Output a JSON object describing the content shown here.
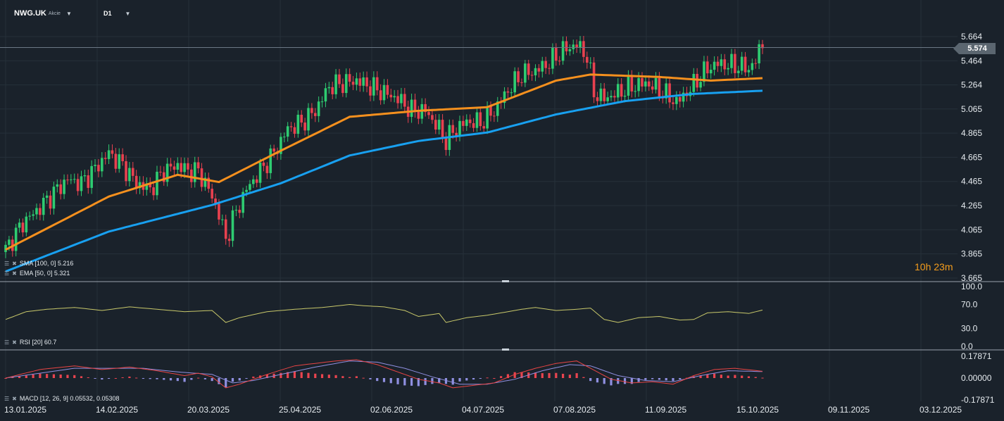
{
  "header": {
    "symbol": "NWG.UK",
    "instrument_type": "Akcie",
    "timeframe": "D1"
  },
  "timer": {
    "hours": "10",
    "h_unit": "h",
    "minutes": "23",
    "m_unit": "m"
  },
  "legends": {
    "sma": "SMA [100, 0] 5.216",
    "ema": "EMA [50, 0] 5.321",
    "rsi": "RSI [20] 60.7",
    "macd": "MACD [12, 26, 9] 0.05532,  0.05308"
  },
  "colors": {
    "background": "#1a222b",
    "grid": "#26303a",
    "up": "#2ecc71",
    "down": "#e8414f",
    "sma": "#18a0f0",
    "ema": "#f5901e",
    "rsi": "#c8c86a",
    "macd": "#e84444",
    "signal": "#8f8fe0",
    "hist_up": "#e8444f",
    "hist_down": "#8f8fe0",
    "price_line": "#6b7885"
  },
  "chart_data": [
    {
      "type": "candlestick",
      "title": "NWG.UK",
      "current_price": "5.574",
      "y_ticks": [
        "5.664",
        "5.464",
        "5.264",
        "5.065",
        "4.865",
        "4.665",
        "4.465",
        "4.265",
        "4.065",
        "3.865",
        "3.665"
      ],
      "ylim": [
        3.665,
        5.664
      ],
      "x_ticks": [
        "13.01.2025",
        "14.02.2025",
        "20.03.2025",
        "25.04.2025",
        "02.06.2025",
        "04.07.2025",
        "07.08.2025",
        "11.09.2025",
        "15.10.2025",
        "09.11.2025",
        "03.12.2025"
      ],
      "close_anchors": [
        [
          0,
          3.9
        ],
        [
          5,
          4.12
        ],
        [
          10,
          4.25
        ],
        [
          15,
          4.4
        ],
        [
          18,
          4.48
        ],
        [
          22,
          4.45
        ],
        [
          26,
          4.57
        ],
        [
          30,
          4.7
        ],
        [
          34,
          4.6
        ],
        [
          38,
          4.45
        ],
        [
          42,
          4.4
        ],
        [
          46,
          4.55
        ],
        [
          50,
          4.6
        ],
        [
          53,
          4.55
        ],
        [
          56,
          4.55
        ],
        [
          59,
          4.4
        ],
        [
          62,
          4.2
        ],
        [
          64,
          3.98
        ],
        [
          66,
          4.15
        ],
        [
          70,
          4.4
        ],
        [
          74,
          4.55
        ],
        [
          78,
          4.7
        ],
        [
          82,
          4.9
        ],
        [
          86,
          4.95
        ],
        [
          90,
          5.05
        ],
        [
          94,
          5.25
        ],
        [
          98,
          5.28
        ],
        [
          102,
          5.3
        ],
        [
          106,
          5.25
        ],
        [
          110,
          5.2
        ],
        [
          114,
          5.15
        ],
        [
          118,
          5.05
        ],
        [
          122,
          5.05
        ],
        [
          126,
          4.9
        ],
        [
          128,
          4.8
        ],
        [
          130,
          4.88
        ],
        [
          134,
          4.96
        ],
        [
          138,
          4.95
        ],
        [
          142,
          5.05
        ],
        [
          146,
          5.22
        ],
        [
          150,
          5.35
        ],
        [
          154,
          5.38
        ],
        [
          158,
          5.45
        ],
        [
          162,
          5.55
        ],
        [
          166,
          5.6
        ],
        [
          169,
          5.5
        ],
        [
          171,
          5.2
        ],
        [
          174,
          5.15
        ],
        [
          178,
          5.2
        ],
        [
          182,
          5.25
        ],
        [
          186,
          5.28
        ],
        [
          189,
          5.24
        ],
        [
          192,
          5.18
        ],
        [
          195,
          5.12
        ],
        [
          198,
          5.2
        ],
        [
          201,
          5.3
        ],
        [
          204,
          5.4
        ],
        [
          207,
          5.44
        ],
        [
          210,
          5.43
        ],
        [
          213,
          5.42
        ],
        [
          216,
          5.4
        ],
        [
          218,
          5.46
        ],
        [
          219,
          5.55
        ],
        [
          220,
          5.62
        ]
      ],
      "series": [
        {
          "name": "EMA [50, 0]",
          "last": 5.321,
          "anchors": [
            [
              0,
              3.9
            ],
            [
              30,
              4.34
            ],
            [
              50,
              4.52
            ],
            [
              62,
              4.46
            ],
            [
              80,
              4.72
            ],
            [
              100,
              5.0
            ],
            [
              120,
              5.05
            ],
            [
              140,
              5.08
            ],
            [
              160,
              5.3
            ],
            [
              170,
              5.35
            ],
            [
              190,
              5.33
            ],
            [
              205,
              5.3
            ],
            [
              220,
              5.32
            ]
          ]
        },
        {
          "name": "SMA [100, 0]",
          "last": 5.216,
          "anchors": [
            [
              0,
              3.72
            ],
            [
              30,
              4.05
            ],
            [
              60,
              4.27
            ],
            [
              80,
              4.45
            ],
            [
              100,
              4.68
            ],
            [
              120,
              4.8
            ],
            [
              140,
              4.87
            ],
            [
              160,
              5.02
            ],
            [
              180,
              5.13
            ],
            [
              200,
              5.19
            ],
            [
              220,
              5.216
            ]
          ]
        }
      ]
    },
    {
      "type": "line",
      "title": "RSI [20]",
      "value": 60.7,
      "y_ticks": [
        "100.0",
        "70.0",
        "30.0",
        "0.0"
      ],
      "ylim": [
        0,
        100
      ],
      "series": [
        {
          "name": "RSI [20]",
          "values_anchor": [
            [
              0,
              45
            ],
            [
              6,
              58
            ],
            [
              12,
              62
            ],
            [
              20,
              65
            ],
            [
              28,
              60
            ],
            [
              36,
              66
            ],
            [
              44,
              62
            ],
            [
              52,
              58
            ],
            [
              60,
              60
            ],
            [
              64,
              40
            ],
            [
              68,
              48
            ],
            [
              76,
              58
            ],
            [
              84,
              62
            ],
            [
              92,
              65
            ],
            [
              100,
              70
            ],
            [
              104,
              68
            ],
            [
              110,
              66
            ],
            [
              116,
              60
            ],
            [
              120,
              50
            ],
            [
              126,
              55
            ],
            [
              128,
              40
            ],
            [
              134,
              48
            ],
            [
              140,
              52
            ],
            [
              146,
              58
            ],
            [
              150,
              62
            ],
            [
              154,
              65
            ],
            [
              160,
              60
            ],
            [
              166,
              62
            ],
            [
              170,
              64
            ],
            [
              174,
              45
            ],
            [
              178,
              40
            ],
            [
              184,
              48
            ],
            [
              190,
              50
            ],
            [
              196,
              44
            ],
            [
              200,
              45
            ],
            [
              204,
              56
            ],
            [
              210,
              58
            ],
            [
              216,
              55
            ],
            [
              220,
              60.7
            ]
          ]
        }
      ]
    },
    {
      "type": "bar",
      "title": "MACD [12, 26, 9]",
      "macd_value": 0.05532,
      "signal_value": 0.05308,
      "y_ticks": [
        "0.17871",
        "0.00000",
        "-0.17871"
      ],
      "ylim": [
        -0.17871,
        0.17871
      ],
      "series": [
        {
          "name": "MACD",
          "anchors": [
            [
              0,
              0.0
            ],
            [
              10,
              0.07
            ],
            [
              20,
              0.1
            ],
            [
              28,
              0.07
            ],
            [
              36,
              0.09
            ],
            [
              44,
              0.06
            ],
            [
              52,
              0.02
            ],
            [
              56,
              0.04
            ],
            [
              60,
              0.01
            ],
            [
              64,
              -0.08
            ],
            [
              68,
              -0.05
            ],
            [
              76,
              0.03
            ],
            [
              84,
              0.1
            ],
            [
              90,
              0.12
            ],
            [
              96,
              0.14
            ],
            [
              102,
              0.15
            ],
            [
              108,
              0.11
            ],
            [
              114,
              0.05
            ],
            [
              120,
              -0.01
            ],
            [
              126,
              -0.04
            ],
            [
              130,
              -0.08
            ],
            [
              136,
              -0.06
            ],
            [
              142,
              -0.04
            ],
            [
              148,
              0.03
            ],
            [
              154,
              0.08
            ],
            [
              160,
              0.12
            ],
            [
              166,
              0.14
            ],
            [
              170,
              0.08
            ],
            [
              176,
              -0.01
            ],
            [
              182,
              -0.04
            ],
            [
              188,
              -0.03
            ],
            [
              194,
              -0.05
            ],
            [
              200,
              0.02
            ],
            [
              206,
              0.07
            ],
            [
              212,
              0.08
            ],
            [
              220,
              0.05532
            ]
          ]
        },
        {
          "name": "Signal",
          "anchors": [
            [
              0,
              0.0
            ],
            [
              10,
              0.04
            ],
            [
              20,
              0.08
            ],
            [
              30,
              0.08
            ],
            [
              40,
              0.08
            ],
            [
              50,
              0.05
            ],
            [
              60,
              0.03
            ],
            [
              66,
              -0.04
            ],
            [
              72,
              -0.02
            ],
            [
              80,
              0.03
            ],
            [
              90,
              0.09
            ],
            [
              100,
              0.14
            ],
            [
              108,
              0.13
            ],
            [
              116,
              0.08
            ],
            [
              124,
              0.01
            ],
            [
              132,
              -0.05
            ],
            [
              140,
              -0.05
            ],
            [
              148,
              -0.01
            ],
            [
              156,
              0.06
            ],
            [
              164,
              0.11
            ],
            [
              170,
              0.1
            ],
            [
              178,
              0.02
            ],
            [
              186,
              -0.02
            ],
            [
              194,
              -0.03
            ],
            [
              202,
              0.02
            ],
            [
              210,
              0.06
            ],
            [
              220,
              0.05308
            ]
          ]
        }
      ]
    }
  ]
}
